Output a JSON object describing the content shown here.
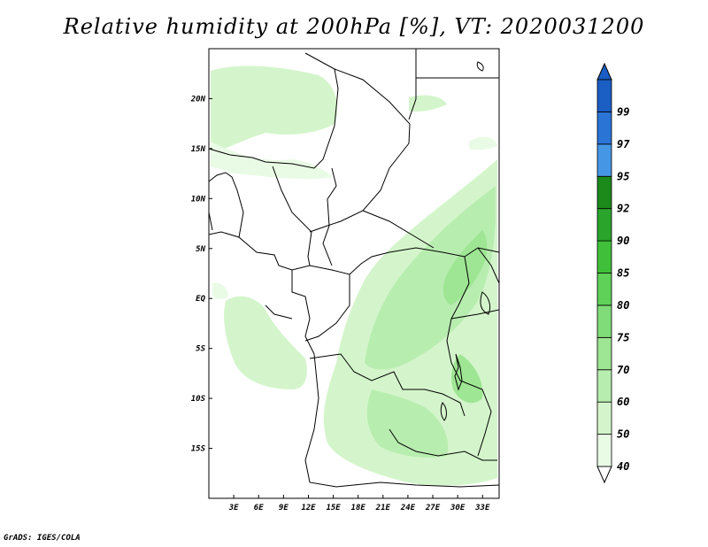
{
  "title": "Relative humidity at 200hPa [%], VT: 2020031200",
  "credit": "GrADS: IGES/COLA",
  "map": {
    "variable": "Relative humidity",
    "level": "200hPa",
    "units": "%",
    "valid_time": "2020031200",
    "lon_range": [
      0,
      35
    ],
    "lat_range": [
      -20,
      25
    ],
    "lat_ticks": [
      {
        "value": 20,
        "label": "20N"
      },
      {
        "value": 15,
        "label": "15N"
      },
      {
        "value": 10,
        "label": "10N"
      },
      {
        "value": 5,
        "label": "5N"
      },
      {
        "value": 0,
        "label": "EQ"
      },
      {
        "value": -5,
        "label": "5S"
      },
      {
        "value": -10,
        "label": "10S"
      },
      {
        "value": -15,
        "label": "15S"
      }
    ],
    "lon_ticks": [
      {
        "value": 3,
        "label": "3E"
      },
      {
        "value": 6,
        "label": "6E"
      },
      {
        "value": 9,
        "label": "9E"
      },
      {
        "value": 12,
        "label": "12E"
      },
      {
        "value": 15,
        "label": "15E"
      },
      {
        "value": 18,
        "label": "18E"
      },
      {
        "value": 21,
        "label": "21E"
      },
      {
        "value": 24,
        "label": "24E"
      },
      {
        "value": 27,
        "label": "27E"
      },
      {
        "value": 30,
        "label": "30E"
      },
      {
        "value": 33,
        "label": "33E"
      }
    ]
  },
  "colorbar": {
    "levels": [
      {
        "label": "40",
        "color": "#e9fbe5"
      },
      {
        "label": "50",
        "color": "#d4f5cb"
      },
      {
        "label": "60",
        "color": "#b8edb0"
      },
      {
        "label": "70",
        "color": "#9ee594"
      },
      {
        "label": "75",
        "color": "#80dc78"
      },
      {
        "label": "80",
        "color": "#5fd158"
      },
      {
        "label": "85",
        "color": "#40c03a"
      },
      {
        "label": "90",
        "color": "#2aa42a"
      },
      {
        "label": "92",
        "color": "#1b8a1b"
      },
      {
        "label": "95",
        "color": "#4597e5"
      },
      {
        "label": "97",
        "color": "#2a74d6"
      },
      {
        "label": "99",
        "color": "#1b5ec4"
      }
    ],
    "top_color": "#1b5ec4",
    "bottom_color": "#ffffff"
  }
}
